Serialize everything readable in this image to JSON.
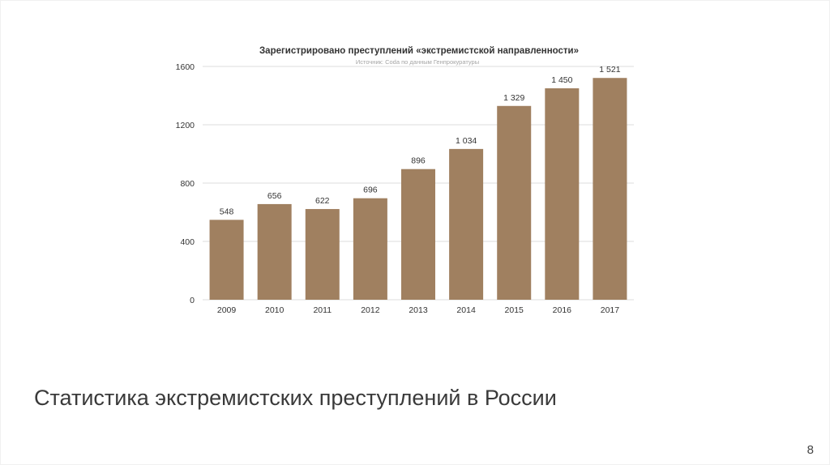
{
  "slide": {
    "title": "Статистика экстремистских преступлений в России",
    "page_number": "8"
  },
  "chart_data": {
    "type": "bar",
    "title": "Зарегистрировано преступлений «экстремистской направленности»",
    "subtitle": "Источник: Coda по данным Генпрокуратуры",
    "categories": [
      "2009",
      "2010",
      "2011",
      "2012",
      "2013",
      "2014",
      "2015",
      "2016",
      "2017"
    ],
    "values": [
      548,
      656,
      622,
      696,
      896,
      1034,
      1329,
      1450,
      1521
    ],
    "data_labels": [
      "548",
      "656",
      "622",
      "696",
      "896",
      "1 034",
      "1 329",
      "1 450",
      "1 521"
    ],
    "yticks": [
      0,
      400,
      800,
      1200,
      1600
    ],
    "ylim": [
      0,
      1600
    ],
    "xlabel": "",
    "ylabel": "",
    "grid": true,
    "legend": "none",
    "bar_color": "#a08060",
    "grid_color": "#dddddd",
    "text_color": "#333333"
  }
}
